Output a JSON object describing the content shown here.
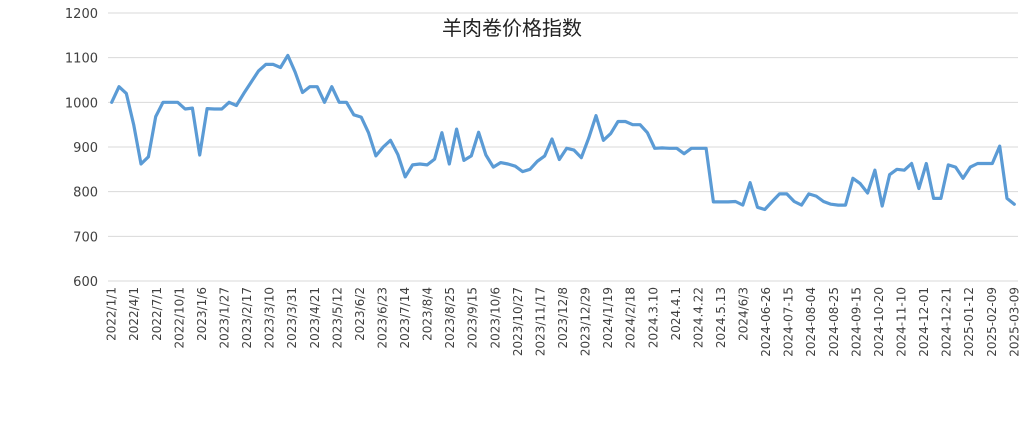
{
  "chart_data": {
    "type": "line",
    "title": "羊肉卷价格指数",
    "xlabel": "",
    "ylabel": "",
    "ylim": [
      600,
      1200
    ],
    "y_ticks": [
      600,
      700,
      800,
      900,
      1000,
      1100,
      1200
    ],
    "grid": "horizontal",
    "legend": "none",
    "line_color": "#5B9BD5",
    "tick_labels": [
      "2022/1/1",
      "2022/4/1",
      "2022/7/1",
      "2022/10/1",
      "2023/1/6",
      "2023/1/27",
      "2023/2/17",
      "2023/3/10",
      "2023/3/31",
      "2023/4/21",
      "2023/5/12",
      "2023/6/2",
      "2023/6/23",
      "2023/7/14",
      "2023/8/4",
      "2023/8/25",
      "2023/9/15",
      "2023/10/6",
      "2023/10/27",
      "2023/11/17",
      "2023/12/8",
      "2023/12/29",
      "2024/1/19",
      "2024/2/18",
      "2024.3.10",
      "2024.4.1",
      "2024.4.22",
      "2024.5.13",
      "2024/6/3",
      "2024-06-26",
      "2024-07-15",
      "2024-08-04",
      "2024-08-25",
      "2024-09-15",
      "2024-10-20",
      "2024-11-10",
      "2024-12-01",
      "2024-12-21",
      "2025-01-12",
      "2025-02-09",
      "2025-03-09"
    ],
    "series": [
      {
        "values": [
          1000,
          1035,
          1020,
          950,
          862,
          878,
          968,
          1000,
          1000,
          1000,
          985,
          987,
          882,
          986,
          985,
          985,
          1000,
          993,
          1020,
          1045,
          1070,
          1085,
          1085,
          1078,
          1105,
          1068,
          1022,
          1035,
          1035,
          1000,
          1035,
          1000,
          1000,
          972,
          967,
          932,
          880,
          900,
          915,
          883,
          833,
          860,
          862,
          860,
          873,
          932,
          862,
          940,
          870,
          880,
          933,
          882,
          855,
          865,
          862,
          857,
          845,
          850,
          868,
          880,
          918,
          872,
          897,
          893,
          876,
          920,
          970,
          915,
          930,
          957,
          957,
          950,
          950,
          932,
          897,
          898,
          897,
          897,
          885,
          897,
          897,
          897,
          777,
          777,
          777,
          778,
          770,
          820,
          765,
          760,
          778,
          795,
          795,
          778,
          770,
          795,
          790,
          778,
          772,
          770,
          770,
          830,
          818,
          797,
          848,
          768,
          838,
          850,
          848,
          863,
          807,
          863,
          785,
          785,
          860,
          855,
          830,
          855,
          863,
          863,
          863,
          902,
          785,
          772
        ]
      }
    ]
  }
}
